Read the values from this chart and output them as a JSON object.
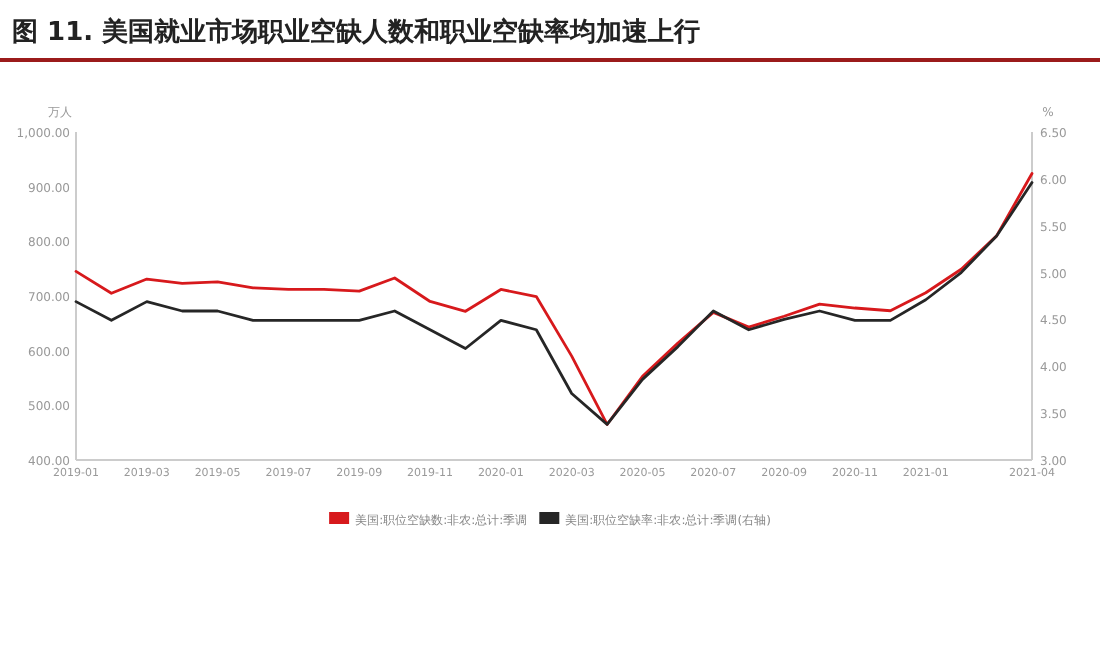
{
  "chart_data": {
    "type": "line",
    "title": "图 11. 美国就业市场职业空缺人数和职业空缺率均加速上行",
    "ylabel": "万人",
    "y2label": "%",
    "categories": [
      "2019-01",
      null,
      "2019-03",
      null,
      "2019-05",
      null,
      "2019-07",
      null,
      "2019-09",
      null,
      "2019-11",
      null,
      "2020-01",
      null,
      "2020-03",
      null,
      "2020-05",
      null,
      "2020-07",
      null,
      "2020-09",
      null,
      "2020-11",
      null,
      "2021-01",
      null,
      null,
      "2021-04"
    ],
    "series": [
      {
        "name": "美国:职位空缺数:非农:总计:季调",
        "color": "#d7191c",
        "values": [
          745,
          705,
          731,
          723,
          726,
          715,
          712,
          712,
          709,
          733,
          690,
          672,
          712,
          699,
          590,
          465,
          553,
          614,
          670,
          643,
          663,
          685,
          678,
          673,
          706,
          749,
          810,
          924
        ]
      },
      {
        "name": "美国:职位空缺率:非农:总计:季调(右轴)",
        "color": "#262626",
        "axis": "y2",
        "values": [
          4.69,
          4.49,
          4.69,
          4.59,
          4.59,
          4.49,
          4.49,
          4.49,
          4.49,
          4.59,
          4.39,
          4.19,
          4.49,
          4.39,
          3.71,
          3.38,
          3.86,
          4.21,
          4.59,
          4.39,
          4.5,
          4.59,
          4.49,
          4.49,
          4.71,
          5.0,
          5.39,
          5.96
        ]
      }
    ],
    "ylim": [
      400,
      1000
    ],
    "yticks": [
      {
        "value": 400,
        "label": "400.00"
      },
      {
        "value": 500,
        "label": "500.00"
      },
      {
        "value": 600,
        "label": "600.00"
      },
      {
        "value": 700,
        "label": "700.00"
      },
      {
        "value": 800,
        "label": "800.00"
      },
      {
        "value": 900,
        "label": "900.00"
      },
      {
        "value": 1000,
        "label": "1,000.00"
      }
    ],
    "y2lim": [
      3,
      6.5
    ],
    "y2ticks": [
      {
        "value": 3,
        "label": "3.00"
      },
      {
        "value": 3.5,
        "label": "3.50"
      },
      {
        "value": 4,
        "label": "4.00"
      },
      {
        "value": 4.5,
        "label": "4.50"
      },
      {
        "value": 5,
        "label": "5.00"
      },
      {
        "value": 5.5,
        "label": "5.50"
      },
      {
        "value": 6,
        "label": "6.00"
      },
      {
        "value": 6.5,
        "label": "6.50"
      }
    ],
    "grid": false,
    "legend": "bottom",
    "marker": "none",
    "line_style": "solid"
  }
}
